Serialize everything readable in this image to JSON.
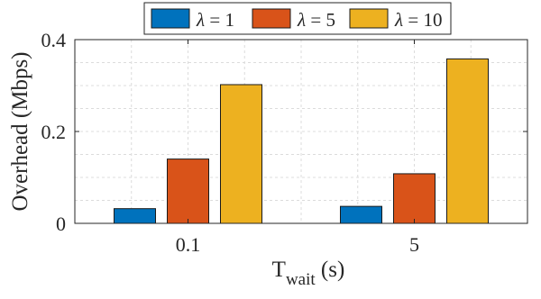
{
  "chart_data": {
    "type": "bar",
    "categories": [
      "0.1",
      "5"
    ],
    "series": [
      {
        "name": "λ = 1",
        "symbol": "λ",
        "rest": " = 1",
        "color": "#0072BD",
        "values": [
          0.032,
          0.037
        ]
      },
      {
        "name": "λ = 5",
        "symbol": "λ",
        "rest": " = 5",
        "color": "#D95319",
        "values": [
          0.14,
          0.108
        ]
      },
      {
        "name": "λ = 10",
        "symbol": "λ",
        "rest": " = 10",
        "color": "#EDB120",
        "values": [
          0.302,
          0.358
        ]
      }
    ],
    "xlabel": {
      "main": "T",
      "subscript": "wait",
      "suffix": " (s)"
    },
    "ylabel": "Overhead (Mbps)",
    "ylim": [
      0,
      0.4
    ],
    "yticks": [
      0,
      0.2,
      0.4
    ],
    "ytick_labels": [
      "0",
      "0.2",
      "0.4"
    ],
    "yminor_step": 0.05,
    "grid": true,
    "legend_position": "top-center",
    "legend_orientation": "horizontal"
  }
}
